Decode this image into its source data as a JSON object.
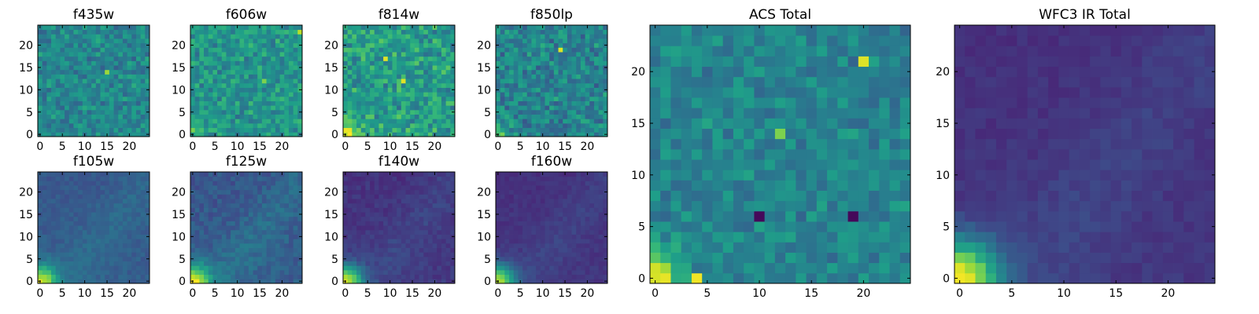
{
  "colormap": "viridis",
  "colors": {
    "viridis_stops": [
      "#440154",
      "#482878",
      "#3e4a89",
      "#31688e",
      "#26828e",
      "#1f9e89",
      "#35b779",
      "#6ece58",
      "#b5de2b",
      "#fde725"
    ],
    "frame": "#000000",
    "background": "#ffffff"
  },
  "chart_data": [
    {
      "type": "heatmap",
      "title": "f435w",
      "pattern": "noise",
      "mean": 0.46,
      "spread": 0.1,
      "noise": 0.12,
      "corner": 0.0,
      "spike": [
        [
          15,
          14,
          0.85
        ]
      ],
      "xlim": [
        0,
        25
      ],
      "ylim": [
        0,
        25
      ],
      "xticks": [
        0,
        5,
        10,
        15,
        20
      ],
      "yticks": [
        0,
        5,
        10,
        15,
        20
      ]
    },
    {
      "type": "heatmap",
      "title": "f606w",
      "pattern": "noise",
      "mean": 0.52,
      "spread": 0.1,
      "noise": 0.13,
      "corner": 0.15,
      "spike": [
        [
          24,
          23,
          0.9
        ],
        [
          16,
          12,
          0.8
        ]
      ],
      "xlim": [
        0,
        25
      ],
      "ylim": [
        0,
        25
      ],
      "xticks": [
        0,
        5,
        10,
        15,
        20
      ],
      "yticks": [
        0,
        5,
        10,
        15,
        20
      ]
    },
    {
      "type": "heatmap",
      "title": "f814w",
      "pattern": "noise",
      "mean": 0.55,
      "spread": 0.12,
      "noise": 0.16,
      "corner": 0.45,
      "spike": [
        [
          9,
          17,
          0.95
        ],
        [
          13,
          12,
          0.95
        ]
      ],
      "xlim": [
        0,
        25
      ],
      "ylim": [
        0,
        25
      ],
      "xticks": [
        0,
        5,
        10,
        15,
        20
      ],
      "yticks": [
        0,
        5,
        10,
        15,
        20
      ]
    },
    {
      "type": "heatmap",
      "title": "f850lp",
      "pattern": "noise",
      "mean": 0.45,
      "spread": 0.1,
      "noise": 0.14,
      "corner": 0.3,
      "spike": [
        [
          14,
          19,
          0.95
        ]
      ],
      "xlim": [
        0,
        25
      ],
      "ylim": [
        0,
        25
      ],
      "xticks": [
        0,
        5,
        10,
        15,
        20
      ],
      "yticks": [
        0,
        5,
        10,
        15,
        20
      ]
    },
    {
      "type": "heatmap",
      "title": "f105w",
      "pattern": "smooth",
      "mean": 0.3,
      "spread": 0.06,
      "noise": 0.04,
      "corner": 0.6,
      "xlim": [
        0,
        25
      ],
      "ylim": [
        0,
        25
      ],
      "xticks": [
        0,
        5,
        10,
        15,
        20
      ],
      "yticks": [
        0,
        5,
        10,
        15,
        20
      ]
    },
    {
      "type": "heatmap",
      "title": "f125w",
      "pattern": "smooth",
      "mean": 0.3,
      "spread": 0.08,
      "noise": 0.06,
      "corner": 0.65,
      "xlim": [
        0,
        25
      ],
      "ylim": [
        0,
        25
      ],
      "xticks": [
        0,
        5,
        10,
        15,
        20
      ],
      "yticks": [
        0,
        5,
        10,
        15,
        20
      ]
    },
    {
      "type": "heatmap",
      "title": "f140w",
      "pattern": "smooth",
      "mean": 0.17,
      "spread": 0.05,
      "noise": 0.04,
      "corner": 0.75,
      "xlim": [
        0,
        25
      ],
      "ylim": [
        0,
        25
      ],
      "xticks": [
        0,
        5,
        10,
        15,
        20
      ],
      "yticks": [
        0,
        5,
        10,
        15,
        20
      ]
    },
    {
      "type": "heatmap",
      "title": "f160w",
      "pattern": "smooth",
      "mean": 0.16,
      "spread": 0.05,
      "noise": 0.03,
      "corner": 0.7,
      "xlim": [
        0,
        25
      ],
      "ylim": [
        0,
        25
      ],
      "xticks": [
        0,
        5,
        10,
        15,
        20
      ],
      "yticks": [
        0,
        5,
        10,
        15,
        20
      ]
    },
    {
      "type": "heatmap",
      "title": "ACS Total",
      "pattern": "noise",
      "mean": 0.45,
      "spread": 0.08,
      "noise": 0.1,
      "corner": 0.5,
      "spike": [
        [
          20,
          21,
          0.95
        ],
        [
          12,
          14,
          0.8
        ],
        [
          19,
          6,
          0.02
        ],
        [
          10,
          6,
          0.02
        ],
        [
          4,
          0,
          0.98
        ]
      ],
      "xlim": [
        0,
        25
      ],
      "ylim": [
        0,
        25
      ],
      "xticks": [
        0,
        5,
        10,
        15,
        20
      ],
      "yticks": [
        0,
        5,
        10,
        15,
        20
      ]
    },
    {
      "type": "heatmap",
      "title": "WFC3 IR Total",
      "pattern": "smooth",
      "mean": 0.16,
      "spread": 0.05,
      "noise": 0.03,
      "corner": 0.8,
      "xlim": [
        0,
        25
      ],
      "ylim": [
        0,
        25
      ],
      "xticks": [
        0,
        5,
        10,
        15,
        20
      ],
      "yticks": [
        0,
        5,
        10,
        15,
        20
      ]
    }
  ]
}
